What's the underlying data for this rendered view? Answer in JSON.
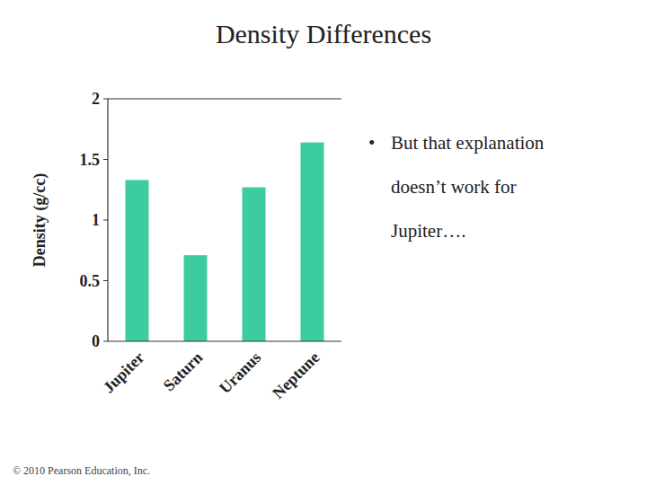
{
  "chart_data": {
    "type": "bar",
    "title": "Density Differences",
    "categories": [
      "Jupiter",
      "Saturn",
      "Uranus",
      "Neptune"
    ],
    "values": [
      1.33,
      0.71,
      1.27,
      1.64
    ],
    "color": "#3dcca0",
    "ylabel": "Density (g/cc)",
    "ylim": [
      0,
      2
    ],
    "yticks": [
      0,
      0.5,
      1,
      1.5,
      2
    ],
    "grid": false,
    "annotations": [
      "•",
      "But that explanation",
      "doesn’t work for",
      "Jupiter….",
      "© 2010 Pearson Education, Inc."
    ]
  }
}
